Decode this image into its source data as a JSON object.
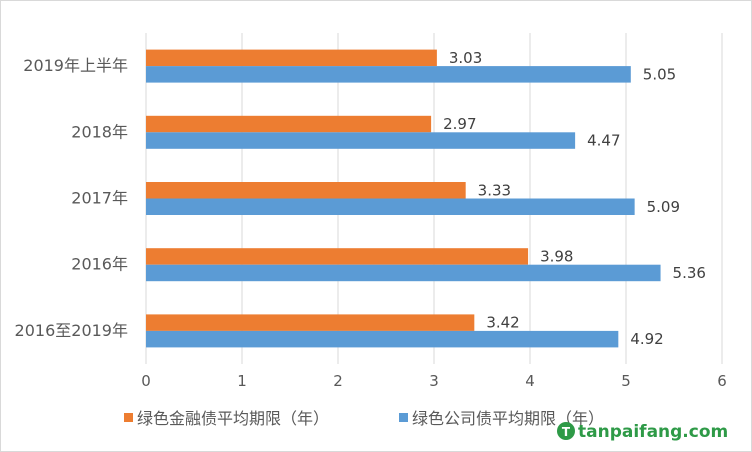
{
  "chart_data": {
    "type": "bar",
    "orientation": "horizontal",
    "categories": [
      "2019年上半年",
      "2018年",
      "2017年",
      "2016年",
      "2016至2019年"
    ],
    "series": [
      {
        "name": "绿色金融债平均期限（年）",
        "values": [
          3.03,
          2.97,
          3.33,
          3.98,
          3.42
        ],
        "color": "#ed7d31"
      },
      {
        "name": "绿色公司债平均期限（年）",
        "values": [
          5.05,
          4.47,
          5.09,
          5.36,
          4.92
        ],
        "color": "#5b9bd5"
      }
    ],
    "xlim": [
      0,
      6
    ],
    "x_ticks": [
      "0",
      "1",
      "2",
      "3",
      "4",
      "5",
      "6"
    ],
    "grid": true,
    "legend_position": "bottom"
  },
  "watermark": {
    "text": "tanpaifang.com",
    "logo_letter": "T"
  }
}
